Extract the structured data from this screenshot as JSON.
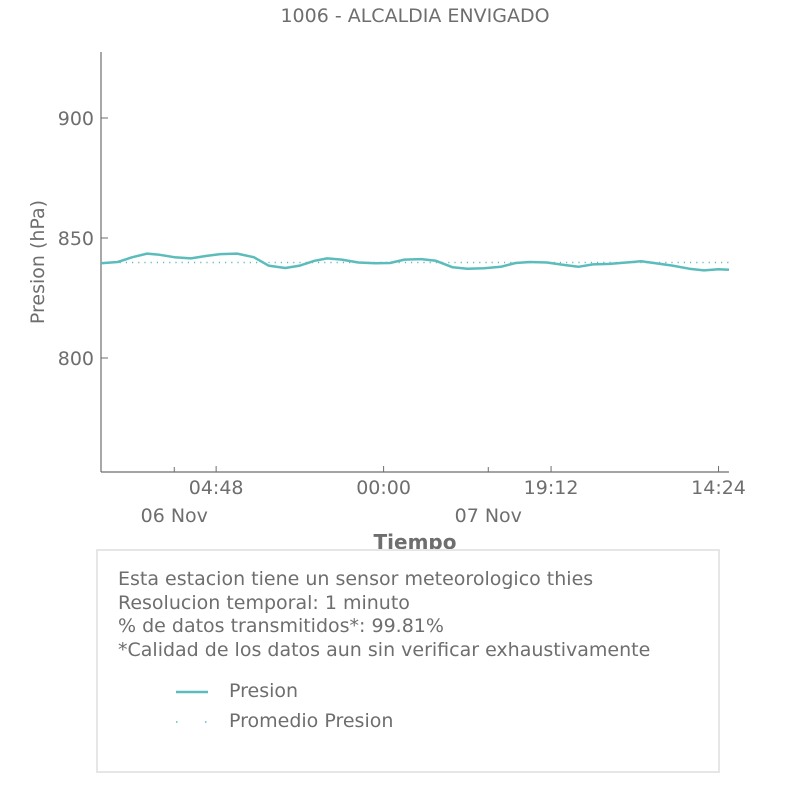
{
  "chart_data": {
    "type": "line",
    "title": "1006 - ALCALDIA ENVIGADO",
    "xlabel": "Tiempo",
    "ylabel": "Presion (hPa)",
    "ylim": [
      752.5,
      927.5
    ],
    "yticks": [
      800,
      850,
      900
    ],
    "xtick_labels": [
      "04:48",
      "00:00",
      "19:12",
      "14:24"
    ],
    "xtick_positions_days": [
      0.2,
      1.0,
      1.8,
      2.6
    ],
    "date_labels": [
      {
        "label": "06 Nov",
        "day": 0
      },
      {
        "label": "07 Nov",
        "day": 1.5
      }
    ],
    "x_range_days": [
      -0.35,
      2.65
    ],
    "color": "#5cbcbc",
    "series": [
      {
        "name": "Presion",
        "style": "solid",
        "x_days": [
          -0.35,
          -0.27,
          -0.2,
          -0.13,
          -0.07,
          0.0,
          0.08,
          0.15,
          0.22,
          0.3,
          0.38,
          0.45,
          0.53,
          0.6,
          0.67,
          0.73,
          0.8,
          0.88,
          0.96,
          1.03,
          1.1,
          1.18,
          1.25,
          1.33,
          1.4,
          1.48,
          1.56,
          1.63,
          1.7,
          1.78,
          1.86,
          1.93,
          2.0,
          2.08,
          2.16,
          2.23,
          2.3,
          2.38,
          2.46,
          2.53,
          2.6,
          2.65
        ],
        "values": [
          839.5,
          840,
          842,
          843.5,
          843,
          842,
          841.5,
          842.5,
          843.3,
          843.5,
          842,
          838.5,
          837.5,
          838.5,
          840.5,
          841.5,
          841,
          839.8,
          839.5,
          839.6,
          841,
          841.2,
          840.5,
          837.8,
          837.2,
          837.4,
          838,
          839.6,
          840,
          839.8,
          838.8,
          838,
          839,
          839.2,
          839.8,
          840.3,
          839.5,
          838.5,
          837.2,
          836.5,
          837,
          836.8
        ]
      },
      {
        "name": "Promedio Presion",
        "style": "dotted",
        "x_days": [
          -0.35,
          2.65
        ],
        "values": [
          839.8,
          839.8
        ]
      }
    ],
    "legend_position": "bottom-box"
  },
  "info": {
    "lines": [
      "Esta estacion tiene un sensor meteorologico thies",
      "Resolucion temporal: 1 minuto",
      "% de datos transmitidos*: 99.81%",
      "*Calidad de los datos aun sin verificar exhaustivamente"
    ]
  },
  "legend": {
    "items": [
      "Presion",
      "Promedio Presion"
    ]
  }
}
